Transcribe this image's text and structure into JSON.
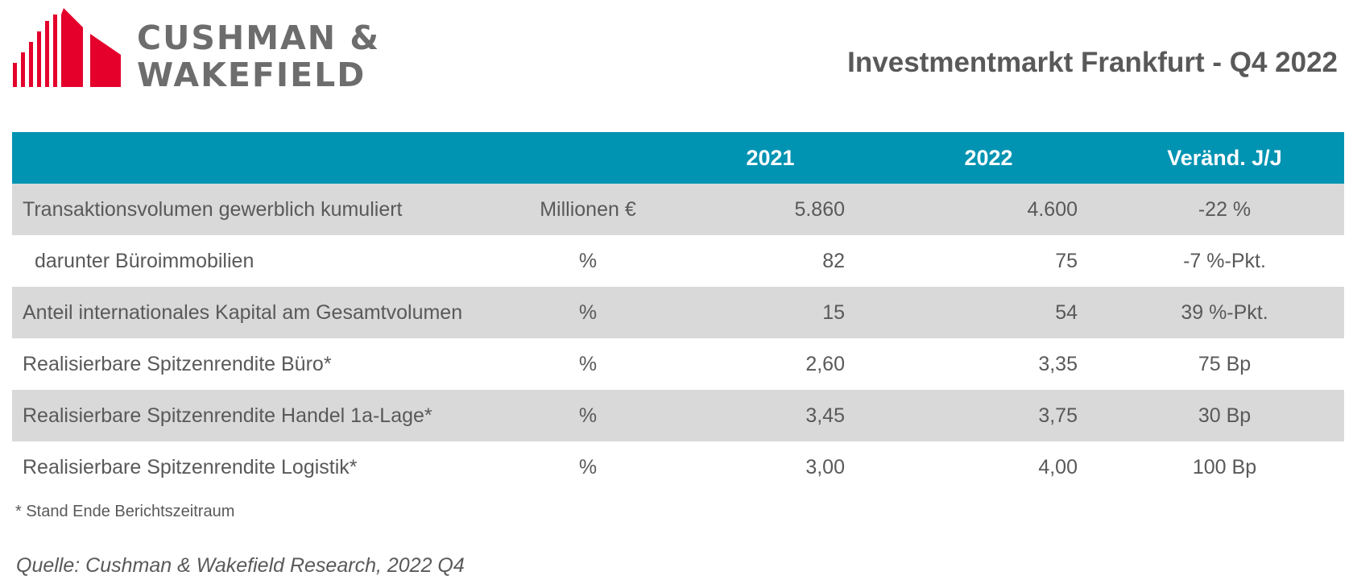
{
  "brand": {
    "logo_text_line1": "CUSHMAN &",
    "logo_text_line2": "WAKEFIELD",
    "mark_color": "#e4002b",
    "text_color": "#6d6d6d"
  },
  "title": "Investmentmarkt Frankfurt - Q4 2022",
  "table": {
    "header_color": "#0093b2",
    "shade_color": "#d9d9d9",
    "columns": [
      "",
      "",
      "2021",
      "2022",
      "Veränd. J/J"
    ],
    "rows": [
      {
        "label": "Transaktionsvolumen gewerblich kumuliert",
        "unit": "Millionen €",
        "v2021": "5.860",
        "v2022": "4.600",
        "change": "-22 %"
      },
      {
        "label": "darunter Büroimmobilien",
        "unit": "%",
        "v2021": "82",
        "v2022": "75",
        "change": "-7 %-Pkt."
      },
      {
        "label": "Anteil internationales Kapital am Gesamtvolumen",
        "unit": "%",
        "v2021": "15",
        "v2022": "54",
        "change": "39 %-Pkt."
      },
      {
        "label": "Realisierbare Spitzenrendite Büro*",
        "unit": "%",
        "v2021": "2,60",
        "v2022": "3,35",
        "change": "75 Bp"
      },
      {
        "label": "Realisierbare Spitzenrendite Handel 1a-Lage*",
        "unit": "%",
        "v2021": "3,45",
        "v2022": "3,75",
        "change": "30 Bp"
      },
      {
        "label": "Realisierbare Spitzenrendite Logistik*",
        "unit": "%",
        "v2021": "3,00",
        "v2022": "4,00",
        "change": "100 Bp"
      }
    ]
  },
  "footnote": "* Stand Ende Berichtszeitraum",
  "source": "Quelle: Cushman & Wakefield Research, 2022 Q4"
}
